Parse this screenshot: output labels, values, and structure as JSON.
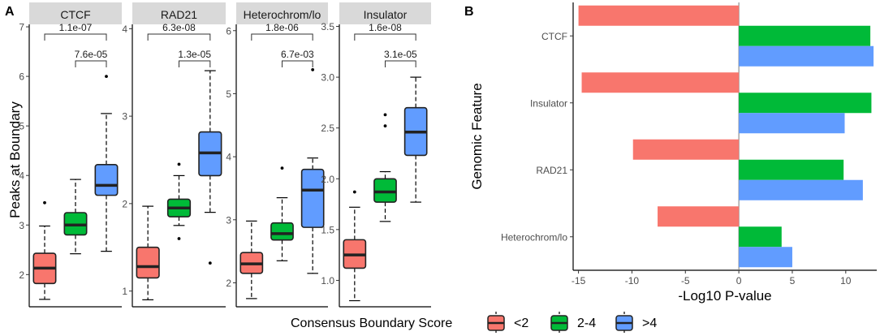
{
  "colors": {
    "low": "#F8766D",
    "mid": "#00BA38",
    "high": "#619CFF",
    "strip": "#D9D9D9",
    "axis": "#000000",
    "text": "#4D4D4D"
  },
  "panels": {
    "a": "A",
    "b": "B"
  },
  "legend": {
    "title": "Consensus Boundary Score",
    "items": [
      "<2",
      "2-4",
      ">4"
    ]
  },
  "chart_data": [
    {
      "type": "boxplot",
      "panel": "A",
      "ylabel": "Peaks at Boundary",
      "groups": [
        "<2",
        "2-4",
        ">4"
      ],
      "facets": [
        {
          "name": "CTCF",
          "ylim": [
            1.35,
            7.05
          ],
          "ticks": [
            2,
            3,
            4,
            5,
            6,
            7
          ],
          "tick_labels": [
            "2",
            "3",
            "4",
            "5",
            "6",
            "7"
          ],
          "boxes": [
            {
              "group": "<2",
              "whislo": 1.5,
              "q1": 1.82,
              "med": 2.13,
              "q3": 2.43,
              "whishi": 2.98,
              "fliers": [
                3.45
              ]
            },
            {
              "group": "2-4",
              "whislo": 2.42,
              "q1": 2.8,
              "med": 3.0,
              "q3": 3.25,
              "whishi": 3.92,
              "fliers": []
            },
            {
              "group": ">4",
              "whislo": 2.47,
              "q1": 3.6,
              "med": 3.8,
              "q3": 4.22,
              "whishi": 5.25,
              "fliers": [
                6.0
              ]
            }
          ],
          "comparisons": [
            {
              "from": 0,
              "to": 2,
              "label": "1.1e-07"
            },
            {
              "from": 1,
              "to": 2,
              "label": "7.6e-05"
            }
          ]
        },
        {
          "name": "RAD21",
          "ylim": [
            0.82,
            4.05
          ],
          "ticks": [
            1,
            2,
            3,
            4
          ],
          "tick_labels": [
            "1",
            "2",
            "3",
            "4"
          ],
          "boxes": [
            {
              "group": "<2",
              "whislo": 0.9,
              "q1": 1.15,
              "med": 1.28,
              "q3": 1.5,
              "whishi": 1.97,
              "fliers": []
            },
            {
              "group": "2-4",
              "whislo": 1.75,
              "q1": 1.85,
              "med": 1.95,
              "q3": 2.05,
              "whishi": 2.32,
              "fliers": [
                2.45,
                1.6
              ]
            },
            {
              "group": ">4",
              "whislo": 1.9,
              "q1": 2.32,
              "med": 2.58,
              "q3": 2.82,
              "whishi": 3.52,
              "fliers": [
                1.32
              ]
            }
          ],
          "comparisons": [
            {
              "from": 0,
              "to": 2,
              "label": "6.3e-08"
            },
            {
              "from": 1,
              "to": 2,
              "label": "1.3e-05"
            }
          ]
        },
        {
          "name": "Heterochrom/lo",
          "ylim": [
            1.62,
            6.1
          ],
          "ticks": [
            2,
            3,
            4,
            5,
            6
          ],
          "tick_labels": [
            "2",
            "3",
            "4",
            "5",
            "6"
          ],
          "boxes": [
            {
              "group": "<2",
              "whislo": 1.75,
              "q1": 2.15,
              "med": 2.3,
              "q3": 2.48,
              "whishi": 2.98,
              "fliers": []
            },
            {
              "group": "2-4",
              "whislo": 2.35,
              "q1": 2.68,
              "med": 2.78,
              "q3": 2.95,
              "whishi": 3.35,
              "fliers": [
                3.82
              ]
            },
            {
              "group": ">4",
              "whislo": 2.15,
              "q1": 2.88,
              "med": 3.47,
              "q3": 3.8,
              "whishi": 3.98,
              "fliers": [
                5.38
              ]
            }
          ],
          "comparisons": [
            {
              "from": 0,
              "to": 2,
              "label": "1.8e-06"
            },
            {
              "from": 1,
              "to": 2,
              "label": "6.7e-03"
            }
          ]
        },
        {
          "name": "Insulator",
          "ylim": [
            0.74,
            3.52
          ],
          "ticks": [
            1.0,
            1.5,
            2.0,
            2.5,
            3.0,
            3.5
          ],
          "tick_labels": [
            "1.0",
            "1.5",
            "2.0",
            "2.5",
            "3.0",
            "3.5"
          ],
          "boxes": [
            {
              "group": "<2",
              "whislo": 0.8,
              "q1": 1.12,
              "med": 1.25,
              "q3": 1.4,
              "whishi": 1.72,
              "fliers": [
                1.87
              ]
            },
            {
              "group": "2-4",
              "whislo": 1.58,
              "q1": 1.77,
              "med": 1.87,
              "q3": 2.0,
              "whishi": 2.07,
              "fliers": [
                2.52,
                2.63
              ]
            },
            {
              "group": ">4",
              "whislo": 1.77,
              "q1": 2.23,
              "med": 2.46,
              "q3": 2.7,
              "whishi": 3.0,
              "fliers": []
            }
          ],
          "comparisons": [
            {
              "from": 0,
              "to": 2,
              "label": "1.6e-08"
            },
            {
              "from": 1,
              "to": 2,
              "label": "3.1e-05"
            }
          ]
        }
      ]
    },
    {
      "type": "bar",
      "orientation": "horizontal",
      "panel": "B",
      "xlabel": "-Log10 P-value",
      "ylabel": "Genomic Feature",
      "xlim": [
        -15.5,
        12.9
      ],
      "xticks": [
        -15,
        -10,
        -5,
        0,
        5,
        10
      ],
      "xtick_labels": [
        "-15",
        "-10",
        "-5",
        "0",
        "5",
        "10"
      ],
      "categories": [
        "CTCF",
        "Insulator",
        "RAD21",
        "Heterochrom/lo"
      ],
      "series": [
        {
          "name": "<2",
          "values": [
            -15.0,
            -14.7,
            -9.9,
            -7.6
          ]
        },
        {
          "name": "2-4",
          "values": [
            12.3,
            12.4,
            9.8,
            4.0
          ]
        },
        {
          "name": ">4",
          "values": [
            12.6,
            9.9,
            11.6,
            5.0
          ]
        }
      ]
    }
  ]
}
